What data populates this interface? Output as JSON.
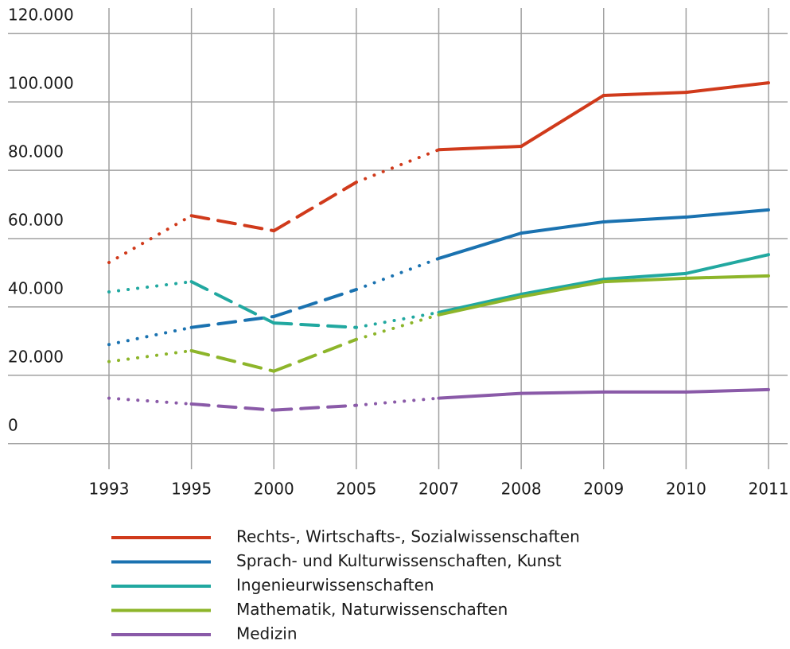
{
  "chart_data": {
    "type": "line",
    "categories": [
      "1993",
      "1995",
      "2000",
      "2005",
      "2007",
      "2008",
      "2009",
      "2010",
      "2011"
    ],
    "segment_styles": [
      "dotted",
      "dashed",
      "dashed",
      "dotted",
      "solid",
      "solid",
      "solid",
      "solid"
    ],
    "series": [
      {
        "name": "Rechts-, Wirtschafts-, Sozialwissenschaften",
        "color": "#d03a1b",
        "values": [
          53000,
          66700,
          62300,
          76500,
          86000,
          87000,
          101900,
          102800,
          105600
        ]
      },
      {
        "name": "Sprach- und Kulturwissenschaften, Kunst",
        "color": "#1a72b0",
        "values": [
          29000,
          34000,
          37200,
          45100,
          54200,
          61600,
          64900,
          66300,
          68400
        ]
      },
      {
        "name": "Ingenieurwissenschaften",
        "color": "#21a8a0",
        "values": [
          44400,
          47400,
          35300,
          34000,
          38400,
          43700,
          48100,
          49800,
          55300
        ]
      },
      {
        "name": "Mathematik, Naturwissenschaften",
        "color": "#8db52a",
        "values": [
          24000,
          27200,
          21200,
          30500,
          37700,
          43000,
          47400,
          48400,
          49100
        ]
      },
      {
        "name": "Medizin",
        "color": "#8a5aa8",
        "values": [
          13300,
          11600,
          9800,
          11200,
          13300,
          14700,
          15100,
          15100,
          15800
        ]
      }
    ],
    "ylim": [
      -7500,
      127500
    ],
    "yticks": [
      0,
      {
        "value": 20000,
        "label": "20.000"
      },
      {
        "value": 40000,
        "label": "40.000"
      },
      {
        "value": 60000,
        "label": "60.000"
      },
      {
        "value": 80000,
        "label": "80.000"
      },
      {
        "value": 100000,
        "label": "100.000"
      },
      {
        "value": 120000,
        "label": "120.000"
      }
    ],
    "grid": true,
    "legend": "bottom"
  }
}
